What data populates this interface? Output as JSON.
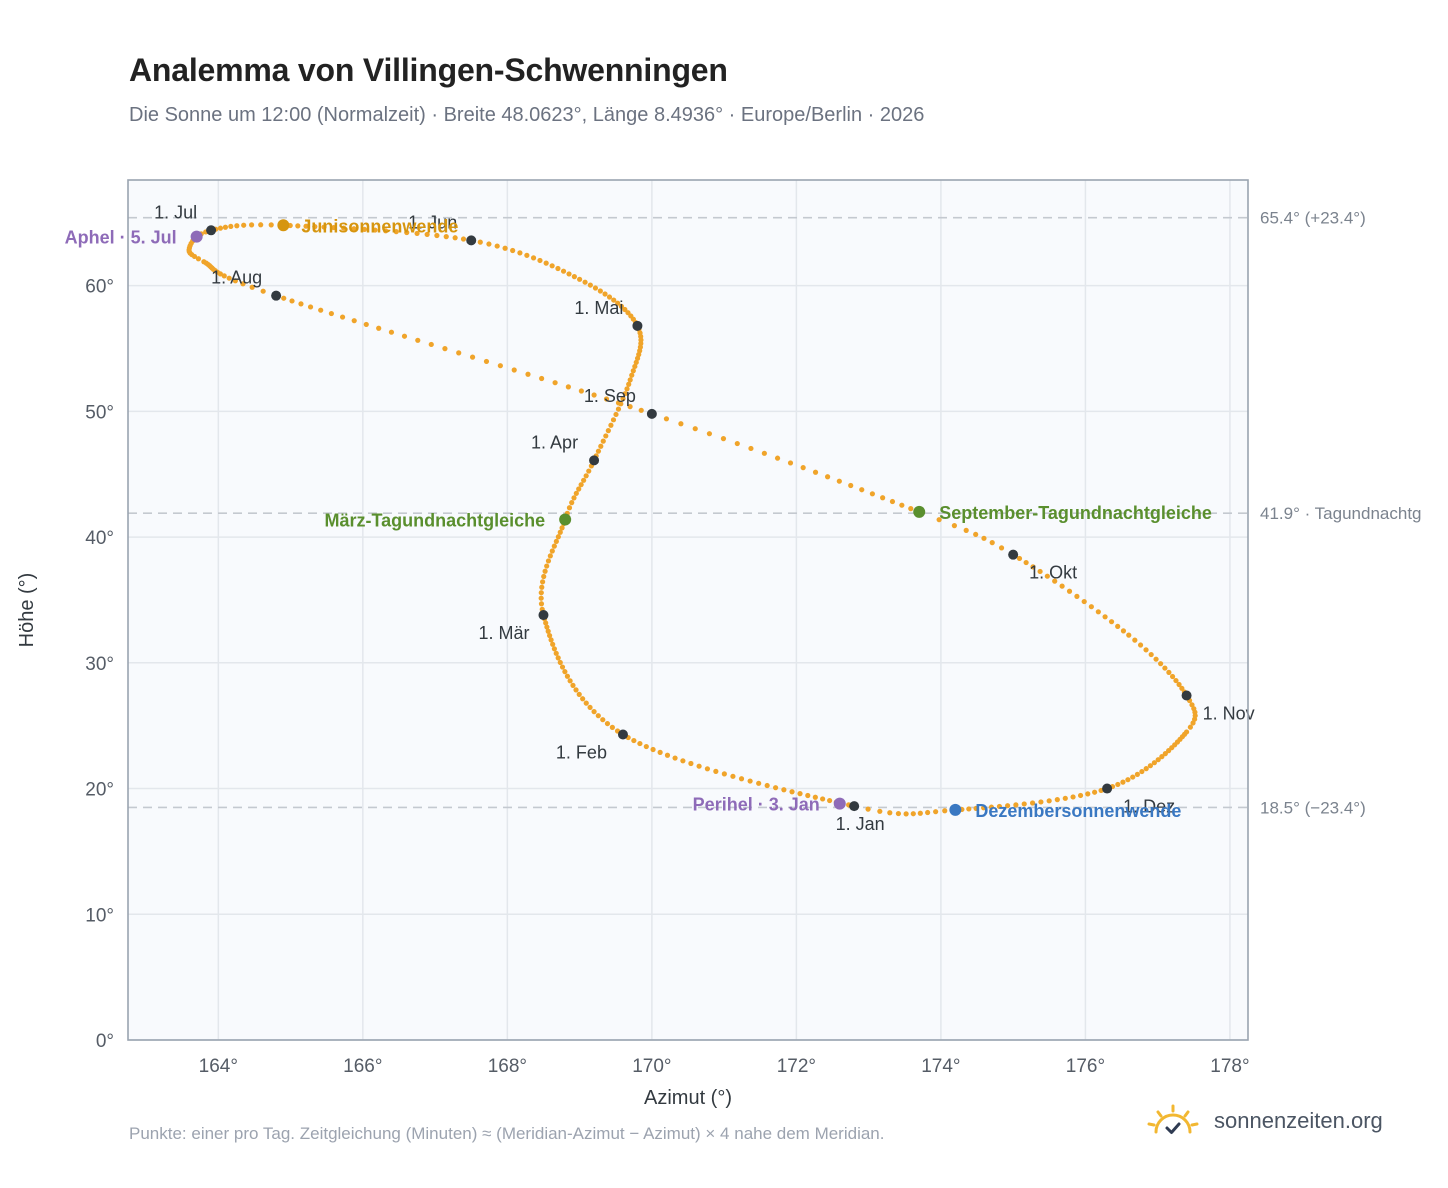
{
  "title": "Analemma von Villingen-Schwenningen",
  "subtitle": "Die Sonne um 12:00 (Normalzeit) · Breite 48.0623°, Länge 8.4936° · Europe/Berlin · 2026",
  "footnote": "Punkte: einer pro Tag. Zeitgleichung (Minuten) ≈ (Meridian-Azimut − Azimut) × 4 nahe dem Meridian.",
  "brand": {
    "name": "sonnenzeiten.org",
    "icon": "sun-check-icon"
  },
  "colors": {
    "curve": "#f0a42a",
    "month_point": "#333a40",
    "solstice_june": "#d6950f",
    "solstice_december": "#3a78c2",
    "equinox": "#5a8f2e",
    "apsis": "#8e6bb8",
    "reference_line": "#c4c9d0",
    "plot_background": "#f8fafd",
    "grid": "#e3e7ec",
    "frame": "#9aa4b0"
  },
  "chart_data": {
    "type": "scatter",
    "xlabel": "Azimut (°)",
    "ylabel": "Höhe (°)",
    "xlim": [
      162.75,
      178.25
    ],
    "ylim": [
      0,
      68.4
    ],
    "xticks": [
      {
        "value": 164,
        "label": "164°"
      },
      {
        "value": 166,
        "label": "166°"
      },
      {
        "value": 168,
        "label": "168°"
      },
      {
        "value": 170,
        "label": "170°"
      },
      {
        "value": 172,
        "label": "172°"
      },
      {
        "value": 174,
        "label": "174°"
      },
      {
        "value": 176,
        "label": "176°"
      },
      {
        "value": 178,
        "label": "178°"
      }
    ],
    "yticks": [
      {
        "value": 0,
        "label": "0°"
      },
      {
        "value": 10,
        "label": "10°"
      },
      {
        "value": 20,
        "label": "20°"
      },
      {
        "value": 30,
        "label": "30°"
      },
      {
        "value": 40,
        "label": "40°"
      },
      {
        "value": 50,
        "label": "50°"
      },
      {
        "value": 60,
        "label": "60°"
      }
    ],
    "grid": true,
    "reference_lines": [
      {
        "y": 65.4,
        "label": "65.4° (+23.4°)"
      },
      {
        "y": 41.9,
        "label": "41.9° · Tagundnachtg"
      },
      {
        "y": 18.5,
        "label": "18.5° (−23.4°)"
      }
    ],
    "month_points": [
      {
        "label": "1. Jan",
        "x": 172.8,
        "y": 18.6,
        "anchor": "middle",
        "dx": 6,
        "dy": 24
      },
      {
        "label": "1. Feb",
        "x": 169.6,
        "y": 24.3,
        "anchor": "end",
        "dx": -16,
        "dy": 24
      },
      {
        "label": "1. Mär",
        "x": 168.5,
        "y": 33.8,
        "anchor": "end",
        "dx": -14,
        "dy": 24
      },
      {
        "label": "1. Apr",
        "x": 169.2,
        "y": 46.1,
        "anchor": "end",
        "dx": -16,
        "dy": -12
      },
      {
        "label": "1. Mai",
        "x": 169.8,
        "y": 56.8,
        "anchor": "end",
        "dx": -14,
        "dy": -12
      },
      {
        "label": "1. Jun",
        "x": 167.5,
        "y": 63.6,
        "anchor": "end",
        "dx": -14,
        "dy": -12
      },
      {
        "label": "1. Jul",
        "x": 163.9,
        "y": 64.4,
        "anchor": "end",
        "dx": -14,
        "dy": -12
      },
      {
        "label": "1. Aug",
        "x": 164.8,
        "y": 59.2,
        "anchor": "end",
        "dx": -14,
        "dy": -12
      },
      {
        "label": "1. Sep",
        "x": 170.0,
        "y": 49.8,
        "anchor": "end",
        "dx": -16,
        "dy": -12
      },
      {
        "label": "1. Okt",
        "x": 175.0,
        "y": 38.6,
        "anchor": "start",
        "dx": 16,
        "dy": 24
      },
      {
        "label": "1. Nov",
        "x": 177.4,
        "y": 27.4,
        "anchor": "start",
        "dx": 16,
        "dy": 24
      },
      {
        "label": "1. Dez",
        "x": 176.3,
        "y": 20.0,
        "anchor": "start",
        "dx": 16,
        "dy": 24
      }
    ],
    "events": [
      {
        "label": "Junisonnenwende",
        "x": 164.9,
        "y": 64.8,
        "color_key": "solstice_june",
        "anchor": "start",
        "dx": 18
      },
      {
        "label": "Dezembersonnenwende",
        "x": 174.2,
        "y": 18.3,
        "color_key": "solstice_december",
        "anchor": "start",
        "dx": 20
      },
      {
        "label": "März-Tagundnachtgleiche",
        "x": 168.8,
        "y": 41.4,
        "color_key": "equinox",
        "anchor": "end",
        "dx": -20
      },
      {
        "label": "September-Tagundnachtgleiche",
        "x": 173.7,
        "y": 42.0,
        "color_key": "equinox",
        "anchor": "start",
        "dx": 20
      },
      {
        "label": "Perihel · 3. Jan",
        "x": 172.6,
        "y": 18.8,
        "color_key": "apsis",
        "anchor": "end",
        "dx": -20
      },
      {
        "label": "Aphel · 5. Jul",
        "x": 163.7,
        "y": 63.9,
        "color_key": "apsis",
        "anchor": "end",
        "dx": -20
      }
    ],
    "curve_key_points": [
      {
        "day": 0,
        "x": 172.8,
        "y": 18.6
      },
      {
        "day": 31,
        "x": 169.6,
        "y": 24.3
      },
      {
        "day": 59,
        "x": 168.5,
        "y": 33.8
      },
      {
        "day": 78,
        "x": 168.8,
        "y": 41.4
      },
      {
        "day": 90,
        "x": 169.2,
        "y": 46.1
      },
      {
        "day": 106,
        "x": 169.7,
        "y": 52.5
      },
      {
        "day": 120,
        "x": 169.8,
        "y": 56.8
      },
      {
        "day": 135,
        "x": 169.0,
        "y": 60.5
      },
      {
        "day": 151,
        "x": 167.5,
        "y": 63.6
      },
      {
        "day": 171,
        "x": 164.9,
        "y": 64.8
      },
      {
        "day": 181,
        "x": 163.9,
        "y": 64.4
      },
      {
        "day": 189,
        "x": 163.6,
        "y": 63.0
      },
      {
        "day": 196,
        "x": 163.8,
        "y": 61.9
      },
      {
        "day": 212,
        "x": 164.8,
        "y": 59.2
      },
      {
        "day": 243,
        "x": 170.0,
        "y": 49.8
      },
      {
        "day": 265,
        "x": 173.7,
        "y": 42.0
      },
      {
        "day": 273,
        "x": 175.0,
        "y": 38.6
      },
      {
        "day": 290,
        "x": 176.6,
        "y": 32.2
      },
      {
        "day": 304,
        "x": 177.4,
        "y": 27.4
      },
      {
        "day": 313,
        "x": 177.4,
        "y": 24.5
      },
      {
        "day": 334,
        "x": 176.3,
        "y": 20.0
      },
      {
        "day": 354,
        "x": 174.2,
        "y": 18.3
      },
      {
        "day": 365,
        "x": 172.8,
        "y": 18.6
      }
    ]
  }
}
